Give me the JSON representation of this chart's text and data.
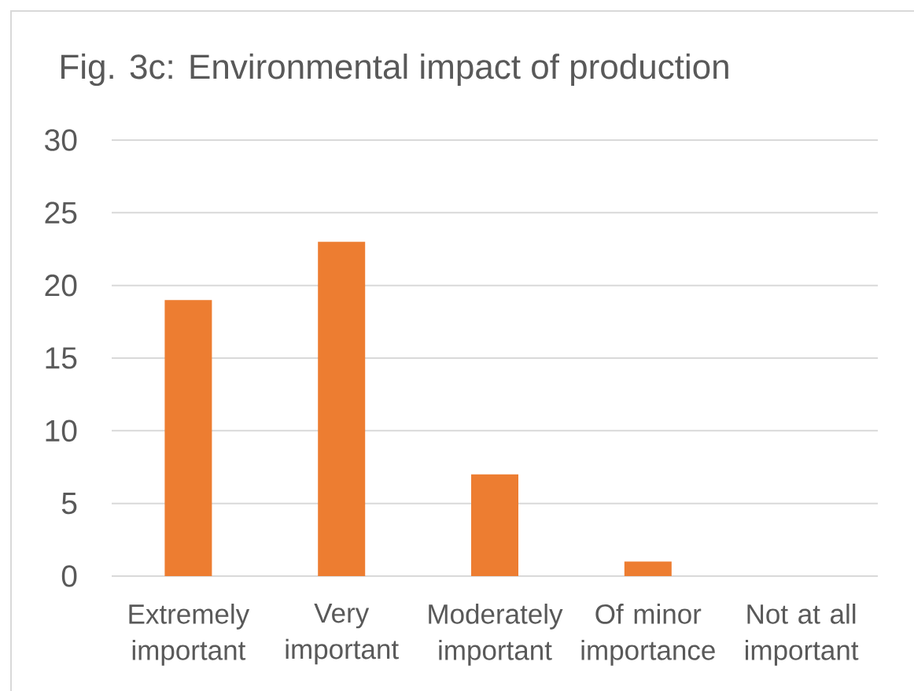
{
  "chart_data": {
    "type": "bar",
    "title": "Fig. 3c: Environmental impact of production",
    "categories": [
      "Extremely important",
      "Very important",
      "Moderately important",
      "Of minor importance",
      "Not at all important"
    ],
    "values": [
      19,
      23,
      7,
      1,
      0
    ],
    "color": "#ed7d31",
    "ylim": [
      0,
      30
    ],
    "yticks": [
      0,
      5,
      10,
      15,
      20,
      25,
      30
    ],
    "grid": "y"
  }
}
